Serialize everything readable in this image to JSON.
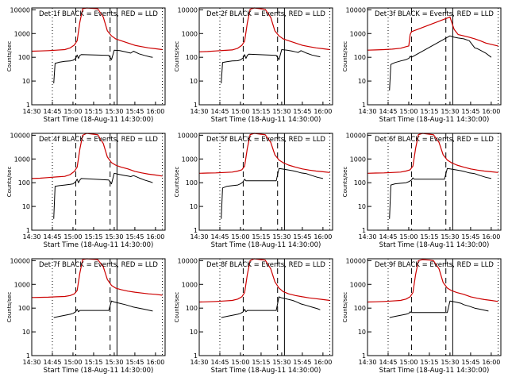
{
  "common": {
    "ylabel": "Counts/sec",
    "xlabel": "Start Time (18-Aug-11 14:30:00)",
    "xticks": [
      "14:30",
      "14:45",
      "15:00",
      "15:15",
      "15:30",
      "15:45",
      "16:00"
    ],
    "yticks": [
      "1",
      "10",
      "100",
      "1000",
      "10000"
    ],
    "colors": {
      "events": "#000000",
      "lld": "#cc0000",
      "background": "#ffffff"
    }
  },
  "chart_data": [
    {
      "type": "line",
      "title": "Det 1f BLACK = Events, RED = LLD",
      "x_unit": "minutes after 14:30",
      "xlim": [
        0,
        97
      ],
      "ylim": [
        1,
        12000
      ],
      "yscale": "log",
      "series": [
        {
          "name": "Events",
          "x": [
            16,
            17,
            20,
            24,
            28,
            30,
            32,
            33,
            34,
            35,
            36,
            56,
            58,
            60,
            64,
            68,
            70,
            72,
            74,
            78,
            82,
            86,
            88
          ],
          "values": [
            8,
            55,
            62,
            68,
            70,
            75,
            90,
            125,
            90,
            120,
            130,
            120,
            80,
            200,
            190,
            170,
            160,
            150,
            180,
            140,
            120,
            105,
            100
          ]
        },
        {
          "name": "LLD",
          "x": [
            0,
            6,
            12,
            18,
            24,
            28,
            31,
            33,
            35,
            37,
            40,
            45,
            48,
            52,
            55,
            58,
            61,
            65,
            70,
            75,
            80,
            85,
            90,
            95
          ],
          "values": [
            180,
            185,
            190,
            200,
            210,
            250,
            330,
            500,
            3000,
            11000,
            12000,
            11500,
            11000,
            5000,
            1300,
            800,
            600,
            500,
            400,
            320,
            280,
            250,
            230,
            210
          ]
        }
      ]
    },
    {
      "type": "line",
      "title": "Det 2f BLACK = Events, RED = LLD",
      "x_unit": "minutes after 14:30",
      "xlim": [
        0,
        97
      ],
      "ylim": [
        1,
        12000
      ],
      "yscale": "log",
      "series": [
        {
          "name": "Events",
          "x": [
            16,
            17,
            20,
            24,
            28,
            30,
            32,
            33,
            34,
            35,
            36,
            56,
            58,
            60,
            64,
            68,
            70,
            72,
            74,
            78,
            82,
            86,
            88
          ],
          "values": [
            8,
            60,
            65,
            70,
            72,
            78,
            95,
            130,
            90,
            120,
            135,
            120,
            80,
            210,
            200,
            180,
            170,
            160,
            190,
            150,
            125,
            110,
            105
          ]
        },
        {
          "name": "LLD",
          "x": [
            0,
            6,
            12,
            18,
            24,
            28,
            31,
            33,
            35,
            37,
            40,
            45,
            48,
            52,
            55,
            58,
            61,
            65,
            70,
            75,
            80,
            85,
            90,
            95
          ],
          "values": [
            170,
            175,
            185,
            195,
            205,
            240,
            320,
            480,
            2800,
            10500,
            12000,
            11000,
            10500,
            4800,
            1300,
            800,
            600,
            500,
            400,
            320,
            280,
            250,
            230,
            210
          ]
        }
      ]
    },
    {
      "type": "line",
      "title": "Det 3f BLACK = Events, RED = LLD",
      "x_unit": "minutes after 14:30",
      "xlim": [
        0,
        97
      ],
      "ylim": [
        1,
        12000
      ],
      "yscale": "log",
      "series": [
        {
          "name": "Events",
          "x": [
            16,
            17,
            20,
            24,
            28,
            30,
            31,
            32,
            60,
            63,
            66,
            70,
            74,
            78,
            80,
            82,
            86,
            90
          ],
          "values": [
            4,
            50,
            60,
            70,
            80,
            90,
            110,
            100,
            800,
            700,
            650,
            600,
            500,
            250,
            230,
            200,
            150,
            100
          ]
        },
        {
          "name": "LLD",
          "x": [
            0,
            6,
            12,
            18,
            24,
            28,
            30,
            31,
            32,
            60,
            63,
            66,
            70,
            74,
            78,
            82,
            86,
            90,
            95
          ],
          "values": [
            200,
            205,
            210,
            220,
            240,
            280,
            300,
            900,
            1200,
            5000,
            1500,
            900,
            800,
            700,
            600,
            500,
            400,
            350,
            300
          ]
        }
      ]
    },
    {
      "type": "line",
      "title": "Det 4f BLACK = Events, RED = LLD",
      "x_unit": "minutes after 14:30",
      "xlim": [
        0,
        97
      ],
      "ylim": [
        1,
        12000
      ],
      "yscale": "log",
      "series": [
        {
          "name": "Events",
          "x": [
            16,
            17,
            20,
            24,
            28,
            30,
            32,
            33,
            34,
            35,
            36,
            56,
            58,
            60,
            64,
            68,
            70,
            72,
            74,
            78,
            82,
            86,
            88
          ],
          "values": [
            3,
            70,
            75,
            80,
            85,
            90,
            110,
            140,
            100,
            130,
            150,
            130,
            90,
            250,
            220,
            200,
            190,
            180,
            200,
            160,
            130,
            110,
            100
          ]
        },
        {
          "name": "LLD",
          "x": [
            0,
            6,
            12,
            18,
            24,
            28,
            31,
            33,
            35,
            37,
            40,
            45,
            48,
            52,
            55,
            58,
            61,
            65,
            70,
            75,
            80,
            85,
            90,
            95
          ],
          "values": [
            150,
            155,
            165,
            175,
            185,
            220,
            300,
            450,
            2600,
            10000,
            12000,
            11000,
            10500,
            4500,
            1200,
            700,
            550,
            450,
            380,
            300,
            260,
            230,
            210,
            190
          ]
        }
      ]
    },
    {
      "type": "line",
      "title": "Det 5f BLACK = Events, RED = LLD",
      "x_unit": "minutes after 14:30",
      "xlim": [
        0,
        97
      ],
      "ylim": [
        1,
        12000
      ],
      "yscale": "log",
      "series": [
        {
          "name": "Events",
          "x": [
            16,
            17,
            20,
            24,
            28,
            30,
            32,
            33,
            34,
            56,
            58,
            60,
            64,
            68,
            70,
            72,
            74,
            78,
            82,
            86,
            90
          ],
          "values": [
            3,
            60,
            70,
            75,
            80,
            90,
            110,
            140,
            120,
            120,
            400,
            380,
            350,
            320,
            300,
            280,
            260,
            240,
            200,
            170,
            150
          ]
        },
        {
          "name": "LLD",
          "x": [
            0,
            6,
            12,
            18,
            24,
            28,
            31,
            33,
            35,
            37,
            40,
            45,
            48,
            52,
            55,
            58,
            61,
            65,
            70,
            75,
            80,
            85,
            90,
            95
          ],
          "values": [
            250,
            255,
            260,
            270,
            280,
            310,
            350,
            500,
            2800,
            10500,
            12000,
            11000,
            10500,
            5000,
            1500,
            900,
            700,
            550,
            450,
            380,
            340,
            310,
            290,
            270
          ]
        }
      ]
    },
    {
      "type": "line",
      "title": "Det 6f BLACK = Events, RED = LLD",
      "x_unit": "minutes after 14:30",
      "xlim": [
        0,
        97
      ],
      "ylim": [
        1,
        12000
      ],
      "yscale": "log",
      "series": [
        {
          "name": "Events",
          "x": [
            16,
            17,
            20,
            24,
            28,
            30,
            32,
            33,
            34,
            56,
            58,
            60,
            64,
            68,
            70,
            72,
            74,
            78,
            82,
            86,
            90
          ],
          "values": [
            3,
            80,
            90,
            95,
            100,
            110,
            130,
            160,
            140,
            140,
            400,
            380,
            350,
            320,
            300,
            280,
            260,
            240,
            200,
            170,
            150
          ]
        },
        {
          "name": "LLD",
          "x": [
            0,
            6,
            12,
            18,
            24,
            28,
            31,
            33,
            35,
            37,
            40,
            45,
            48,
            52,
            55,
            58,
            61,
            65,
            70,
            75,
            80,
            85,
            90,
            95
          ],
          "values": [
            250,
            255,
            260,
            270,
            280,
            310,
            350,
            500,
            2800,
            10500,
            12000,
            11000,
            10500,
            5000,
            1500,
            900,
            700,
            550,
            450,
            380,
            340,
            310,
            290,
            270
          ]
        }
      ]
    },
    {
      "type": "line",
      "title": "Det 7f BLACK = Events, RED = LLD",
      "x_unit": "minutes after 14:30",
      "xlim": [
        0,
        97
      ],
      "ylim": [
        1,
        12000
      ],
      "yscale": "log",
      "series": [
        {
          "name": "Events",
          "x": [
            16,
            20,
            24,
            28,
            30,
            32,
            33,
            34,
            35,
            56,
            58,
            60,
            64,
            68,
            70,
            72,
            74,
            78,
            82,
            86,
            88
          ],
          "values": [
            40,
            45,
            50,
            55,
            60,
            70,
            90,
            70,
            80,
            80,
            200,
            180,
            160,
            140,
            130,
            120,
            110,
            100,
            90,
            80,
            75
          ]
        },
        {
          "name": "LLD",
          "x": [
            0,
            6,
            12,
            18,
            24,
            28,
            31,
            33,
            35,
            37,
            40,
            45,
            48,
            52,
            55,
            58,
            61,
            65,
            70,
            75,
            80,
            85,
            90,
            95
          ],
          "values": [
            280,
            285,
            290,
            300,
            310,
            340,
            400,
            550,
            3000,
            11000,
            12000,
            11500,
            11000,
            5500,
            1600,
            900,
            700,
            600,
            520,
            470,
            430,
            400,
            380,
            350
          ]
        }
      ]
    },
    {
      "type": "line",
      "title": "Det 8f BLACK = Events, RED = LLD",
      "x_unit": "minutes after 14:30",
      "xlim": [
        0,
        97
      ],
      "ylim": [
        1,
        12000
      ],
      "yscale": "log",
      "series": [
        {
          "name": "Events",
          "x": [
            16,
            20,
            24,
            28,
            30,
            32,
            33,
            34,
            35,
            56,
            58,
            60,
            64,
            68,
            70,
            72,
            74,
            78,
            82,
            86,
            88
          ],
          "values": [
            40,
            45,
            50,
            55,
            60,
            70,
            90,
            70,
            80,
            80,
            300,
            270,
            240,
            210,
            190,
            170,
            150,
            130,
            110,
            95,
            85
          ]
        },
        {
          "name": "LLD",
          "x": [
            0,
            6,
            12,
            18,
            24,
            28,
            31,
            33,
            35,
            37,
            40,
            45,
            48,
            52,
            55,
            58,
            61,
            65,
            70,
            75,
            80,
            85,
            90,
            95
          ],
          "values": [
            180,
            185,
            190,
            200,
            210,
            240,
            300,
            450,
            2600,
            10000,
            12000,
            11000,
            10500,
            4500,
            1300,
            700,
            500,
            400,
            340,
            300,
            270,
            250,
            230,
            210
          ]
        }
      ]
    },
    {
      "type": "line",
      "title": "Det 9f BLACK = Events, RED = LLD",
      "x_unit": "minutes after 14:30",
      "xlim": [
        0,
        97
      ],
      "ylim": [
        1,
        12000
      ],
      "yscale": "log",
      "series": [
        {
          "name": "Events",
          "x": [
            16,
            20,
            24,
            28,
            30,
            31,
            32,
            58,
            60,
            64,
            68,
            70,
            74,
            78,
            82,
            86,
            88
          ],
          "values": [
            40,
            45,
            50,
            55,
            60,
            70,
            65,
            65,
            200,
            180,
            160,
            140,
            120,
            100,
            90,
            80,
            75
          ]
        },
        {
          "name": "LLD",
          "x": [
            0,
            6,
            12,
            18,
            24,
            28,
            31,
            33,
            35,
            37,
            40,
            45,
            48,
            52,
            55,
            58,
            61,
            65,
            70,
            75,
            80,
            85,
            90,
            95
          ],
          "values": [
            180,
            185,
            190,
            200,
            210,
            240,
            300,
            450,
            2600,
            10000,
            11000,
            10500,
            10000,
            4500,
            1200,
            700,
            550,
            450,
            380,
            300,
            260,
            230,
            210,
            190
          ]
        }
      ]
    }
  ]
}
